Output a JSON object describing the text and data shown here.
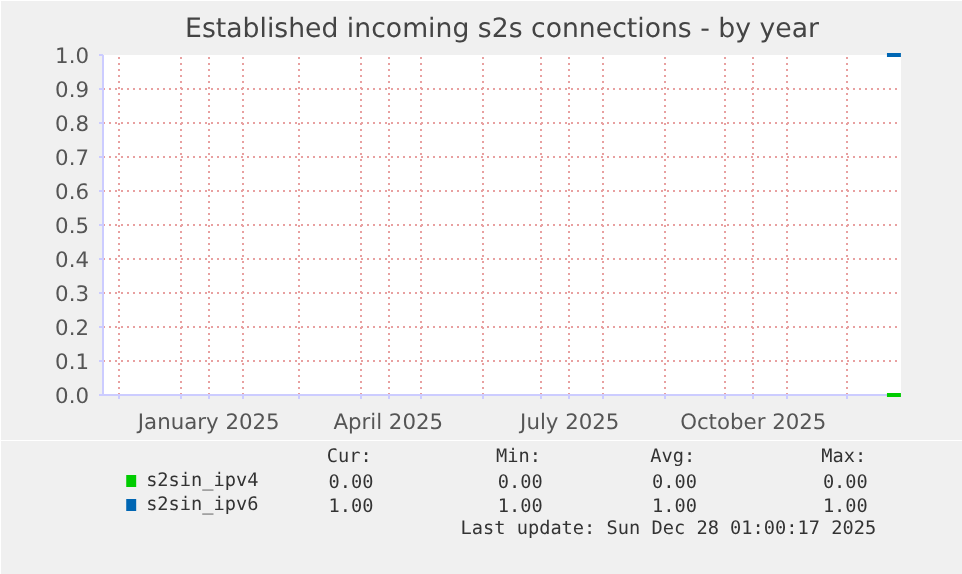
{
  "chart_data": {
    "type": "line",
    "title": "Established incoming s2s connections - by year",
    "xlim": [
      "2024-11-23",
      "2025-12-28T01:00"
    ],
    "xticks": [
      {
        "value": "2024-12-01",
        "label": null
      },
      {
        "value": "2025-01-01",
        "label": null
      },
      {
        "value": "2025-01-15",
        "label": "January 2025"
      },
      {
        "value": "2025-02-01",
        "label": null
      },
      {
        "value": "2025-03-01",
        "label": null
      },
      {
        "value": "2025-04-01",
        "label": null
      },
      {
        "value": "2025-04-15",
        "label": "April 2025"
      },
      {
        "value": "2025-05-01",
        "label": null
      },
      {
        "value": "2025-06-01",
        "label": null
      },
      {
        "value": "2025-07-01",
        "label": null
      },
      {
        "value": "2025-07-15",
        "label": "July 2025"
      },
      {
        "value": "2025-08-01",
        "label": null
      },
      {
        "value": "2025-09-01",
        "label": null
      },
      {
        "value": "2025-10-01",
        "label": null
      },
      {
        "value": "2025-10-15",
        "label": "October 2025"
      },
      {
        "value": "2025-11-01",
        "label": null
      },
      {
        "value": "2025-12-01",
        "label": null
      }
    ],
    "ylim": [
      0,
      1
    ],
    "yticks": [
      {
        "value": 0,
        "label": "0.0"
      },
      0.1,
      0.2,
      0.3,
      0.4,
      0.5,
      0.6,
      0.7,
      0.8,
      0.9,
      {
        "value": 1,
        "label": "1.0"
      }
    ],
    "grid": true,
    "legend": "bottom",
    "marker": "none",
    "line_style": "solid",
    "series": [
      {
        "name": "s2sin_ipv4",
        "color": "#00cc00",
        "x": [
          "2025-12-21",
          "2025-12-28"
        ],
        "values": [
          0,
          0
        ]
      },
      {
        "name": "s2sin_ipv6",
        "color": "#0066b3",
        "x": [
          "2025-12-21",
          "2025-12-28"
        ],
        "values": [
          1,
          1
        ]
      }
    ],
    "annotations": [
      "Cur:",
      "Min:",
      "Avg:",
      "Max:",
      "0.00",
      "0.00",
      "0.00",
      "0.00",
      "1.00",
      "1.00",
      "1.00",
      "1.00",
      "Last update: Sun Dec 28 01:00:17 2025"
    ]
  }
}
